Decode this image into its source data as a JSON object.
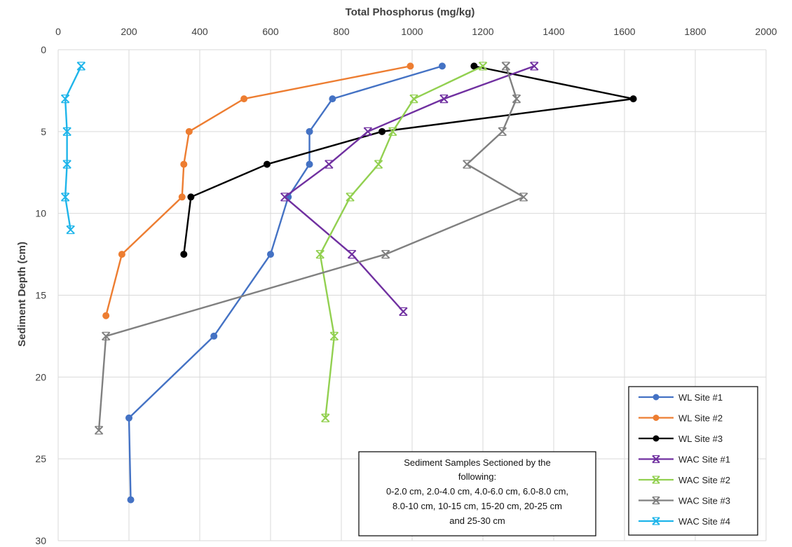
{
  "chart_data": {
    "type": "line",
    "xlabel": "Total Phosphorus (mg/kg)",
    "ylabel": "Sediment Depth (cm)",
    "xlim": [
      0,
      2000
    ],
    "ylim": [
      0,
      30
    ],
    "x_axis_position": "top",
    "y_axis_inverted": true,
    "x_ticks": [
      0,
      200,
      400,
      600,
      800,
      1000,
      1200,
      1400,
      1600,
      1800,
      2000
    ],
    "y_ticks": [
      0,
      5,
      10,
      15,
      20,
      25,
      30
    ],
    "grid": true,
    "legend_position": "bottom-right",
    "series": [
      {
        "name": "WL Site #1",
        "color": "#4472C4",
        "marker": "circle",
        "points": [
          [
            1085,
            1
          ],
          [
            775,
            3
          ],
          [
            710,
            5
          ],
          [
            710,
            7
          ],
          [
            650,
            9
          ],
          [
            600,
            12.5
          ],
          [
            440,
            17.5
          ],
          [
            200,
            22.5
          ],
          [
            205,
            27.5
          ]
        ]
      },
      {
        "name": "WL Site #2",
        "color": "#ED7D31",
        "marker": "circle",
        "points": [
          [
            995,
            1
          ],
          [
            525,
            3
          ],
          [
            370,
            5
          ],
          [
            355,
            7
          ],
          [
            350,
            9
          ],
          [
            180,
            12.5
          ],
          [
            135,
            16.25
          ]
        ]
      },
      {
        "name": "WL Site #3",
        "color": "#000000",
        "marker": "circle",
        "points": [
          [
            1175,
            1
          ],
          [
            1625,
            3
          ],
          [
            915,
            5
          ],
          [
            590,
            7
          ],
          [
            375,
            9
          ],
          [
            355,
            12.5
          ]
        ]
      },
      {
        "name": "WAC Site #1",
        "color": "#7030A0",
        "marker": "x",
        "points": [
          [
            1345,
            1
          ],
          [
            1090,
            3
          ],
          [
            875,
            5
          ],
          [
            765,
            7
          ],
          [
            640,
            9
          ],
          [
            830,
            12.5
          ],
          [
            975,
            16
          ]
        ]
      },
      {
        "name": "WAC Site #2",
        "color": "#92D050",
        "marker": "x",
        "points": [
          [
            1200,
            1
          ],
          [
            1005,
            3
          ],
          [
            945,
            5
          ],
          [
            905,
            7
          ],
          [
            825,
            9
          ],
          [
            740,
            12.5
          ],
          [
            780,
            17.5
          ],
          [
            755,
            22.5
          ]
        ]
      },
      {
        "name": "WAC Site #3",
        "color": "#808080",
        "marker": "x",
        "points": [
          [
            1265,
            1
          ],
          [
            1295,
            3
          ],
          [
            1255,
            5
          ],
          [
            1155,
            7
          ],
          [
            1315,
            9
          ],
          [
            925,
            12.5
          ],
          [
            135,
            17.5
          ],
          [
            115,
            23.25
          ]
        ]
      },
      {
        "name": "WAC Site #4",
        "color": "#1FB5EA",
        "marker": "x",
        "points": [
          [
            65,
            1
          ],
          [
            20,
            3
          ],
          [
            25,
            5
          ],
          [
            25,
            7
          ],
          [
            20,
            9
          ],
          [
            35,
            11
          ]
        ]
      }
    ]
  },
  "note_lines": [
    "Sediment Samples Sectioned by the",
    "following:",
    "0-2.0 cm, 2.0-4.0 cm, 4.0-6.0 cm, 6.0-8.0 cm,",
    "8.0-10 cm, 10-15 cm, 15-20 cm, 20-25 cm",
    "and 25-30 cm"
  ]
}
